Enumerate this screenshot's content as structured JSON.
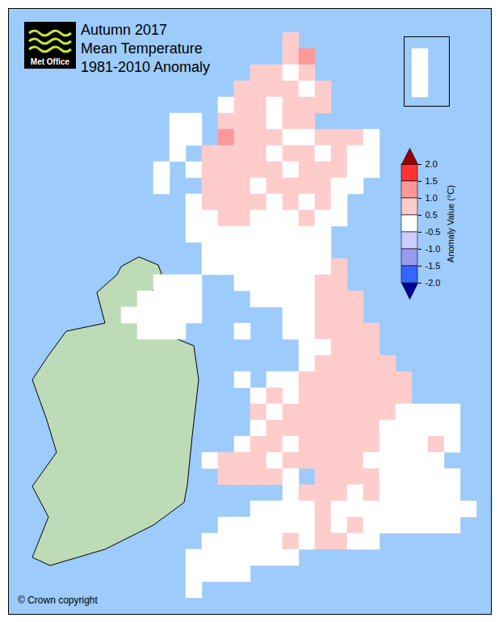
{
  "chart_data": {
    "type": "map",
    "title": "Autumn 2017",
    "subtitle": [
      "Mean Temperature",
      "1981-2010 Anomaly"
    ],
    "annotations": [
      "Met Office"
    ],
    "caption": "© Crown copyright",
    "cells": [
      [
        null,
        null,
        null,
        null,
        null,
        null,
        null,
        null,
        null,
        null,
        null,
        null,
        null,
        null,
        null,
        null,
        0.7,
        null,
        null,
        null,
        null,
        null,
        null,
        null,
        null,
        null,
        null,
        null
      ],
      [
        null,
        null,
        null,
        null,
        null,
        null,
        null,
        null,
        null,
        null,
        null,
        null,
        null,
        null,
        null,
        null,
        0.7,
        1.2,
        null,
        null,
        null,
        null,
        null,
        null,
        0.3,
        null,
        null,
        null
      ],
      [
        null,
        null,
        null,
        null,
        null,
        null,
        null,
        null,
        null,
        null,
        null,
        null,
        null,
        null,
        0.7,
        0.7,
        0.3,
        0.7,
        null,
        null,
        null,
        null,
        null,
        null,
        0.3,
        null,
        null,
        null
      ],
      [
        null,
        null,
        null,
        null,
        null,
        null,
        null,
        null,
        null,
        null,
        null,
        null,
        null,
        0.7,
        0.7,
        0.7,
        0.7,
        0.3,
        0.7,
        null,
        null,
        null,
        null,
        null,
        0.3,
        null,
        null,
        null
      ],
      [
        null,
        null,
        null,
        null,
        null,
        null,
        null,
        null,
        null,
        null,
        null,
        null,
        0.3,
        0.7,
        0.7,
        0.3,
        0.7,
        0.7,
        0.7,
        null,
        null,
        null,
        null,
        null,
        null,
        null,
        null,
        null
      ],
      [
        null,
        null,
        null,
        null,
        null,
        null,
        null,
        null,
        null,
        0.3,
        0.3,
        null,
        0.7,
        0.7,
        0.7,
        0.3,
        0.7,
        0.7,
        null,
        null,
        null,
        null,
        null,
        null,
        null,
        null,
        null,
        null
      ],
      [
        null,
        null,
        null,
        null,
        null,
        null,
        null,
        null,
        null,
        0.3,
        0.3,
        null,
        1.2,
        0.7,
        0.7,
        0.7,
        0.3,
        0.3,
        0.7,
        0.7,
        0.7,
        0.3,
        null,
        null,
        null,
        null,
        null,
        null
      ],
      [
        null,
        null,
        null,
        null,
        null,
        null,
        null,
        null,
        null,
        0.3,
        null,
        0.7,
        0.7,
        0.7,
        0.7,
        0.3,
        0.7,
        0.7,
        0.3,
        0.7,
        0.3,
        0.3,
        null,
        null,
        null,
        null,
        null,
        null
      ],
      [
        null,
        null,
        null,
        null,
        null,
        null,
        null,
        null,
        0.3,
        null,
        0.3,
        0.7,
        0.7,
        0.7,
        0.7,
        0.7,
        0.3,
        0.7,
        0.7,
        0.7,
        0.3,
        0.3,
        null,
        null,
        null,
        null,
        null,
        null
      ],
      [
        null,
        null,
        null,
        null,
        null,
        null,
        null,
        null,
        0.3,
        null,
        null,
        0.7,
        0.7,
        0.7,
        0.3,
        0.7,
        0.7,
        0.7,
        0.7,
        0.3,
        0.3,
        null,
        null,
        null,
        null,
        null,
        null,
        null
      ],
      [
        null,
        null,
        null,
        null,
        null,
        null,
        null,
        null,
        null,
        null,
        0.3,
        0.7,
        0.7,
        0.7,
        0.7,
        0.3,
        0.7,
        0.3,
        0.7,
        0.3,
        null,
        null,
        null,
        null,
        null,
        null,
        null,
        null
      ],
      [
        null,
        null,
        null,
        null,
        null,
        null,
        null,
        null,
        null,
        null,
        0.3,
        0.3,
        0.7,
        0.7,
        0.3,
        0.3,
        0.3,
        0.7,
        0.3,
        0.3,
        null,
        null,
        null,
        null,
        null,
        null,
        null,
        null
      ],
      [
        null,
        null,
        null,
        null,
        null,
        null,
        null,
        null,
        null,
        null,
        0.3,
        0.3,
        0.3,
        0.3,
        0.3,
        0.3,
        0.3,
        0.3,
        0.3,
        null,
        null,
        null,
        null,
        null,
        null,
        null,
        null,
        null
      ],
      [
        null,
        null,
        null,
        null,
        null,
        null,
        null,
        null,
        null,
        null,
        null,
        0.3,
        0.3,
        0.3,
        0.3,
        0.3,
        0.3,
        0.3,
        0.3,
        null,
        null,
        null,
        null,
        null,
        null,
        null,
        null,
        null
      ],
      [
        null,
        null,
        null,
        null,
        null,
        null,
        null,
        null,
        null,
        null,
        null,
        0.3,
        0.3,
        0.3,
        0.3,
        0.3,
        0.3,
        0.3,
        0.3,
        0.7,
        null,
        null,
        null,
        null,
        null,
        null,
        null,
        null
      ],
      [
        null,
        null,
        null,
        null,
        null,
        null,
        null,
        null,
        0.3,
        0.3,
        0.3,
        null,
        null,
        0.3,
        0.3,
        0.3,
        0.3,
        0.3,
        0.7,
        0.7,
        null,
        null,
        null,
        null,
        null,
        null,
        null,
        null
      ],
      [
        null,
        null,
        null,
        null,
        null,
        null,
        null,
        0.3,
        0.3,
        0.3,
        0.3,
        null,
        null,
        null,
        0.3,
        0.3,
        0.3,
        0.3,
        0.7,
        0.7,
        0.7,
        null,
        null,
        null,
        null,
        null,
        null,
        null
      ],
      [
        null,
        null,
        null,
        null,
        null,
        null,
        0.3,
        0.3,
        0.3,
        0.3,
        0.3,
        null,
        null,
        null,
        null,
        null,
        0.3,
        0.3,
        0.7,
        0.7,
        0.7,
        null,
        null,
        null,
        null,
        null,
        null,
        null
      ],
      [
        null,
        null,
        null,
        null,
        null,
        null,
        null,
        0.3,
        0.3,
        0.3,
        null,
        null,
        null,
        0.3,
        null,
        null,
        0.3,
        0.3,
        0.7,
        0.7,
        0.7,
        0.7,
        null,
        null,
        null,
        null,
        null,
        null
      ],
      [
        null,
        null,
        null,
        null,
        null,
        null,
        null,
        null,
        null,
        null,
        null,
        null,
        null,
        null,
        null,
        null,
        null,
        0.3,
        0.3,
        0.7,
        0.7,
        0.7,
        null,
        null,
        null,
        null,
        null,
        null
      ],
      [
        null,
        null,
        null,
        null,
        null,
        null,
        null,
        null,
        null,
        null,
        null,
        null,
        null,
        null,
        null,
        null,
        null,
        0.3,
        0.7,
        0.7,
        0.7,
        0.7,
        0.7,
        null,
        null,
        null,
        null,
        null
      ],
      [
        null,
        null,
        null,
        null,
        null,
        null,
        null,
        null,
        null,
        null,
        null,
        null,
        null,
        0.3,
        null,
        0.3,
        0.3,
        0.7,
        0.7,
        0.7,
        0.7,
        0.7,
        0.7,
        0.7,
        null,
        null,
        null,
        null
      ],
      [
        null,
        null,
        null,
        null,
        null,
        null,
        null,
        null,
        null,
        null,
        null,
        null,
        null,
        null,
        0.3,
        0.7,
        0.3,
        0.7,
        0.7,
        0.7,
        0.7,
        0.7,
        0.7,
        0.7,
        null,
        null,
        null,
        null
      ],
      [
        null,
        null,
        null,
        null,
        null,
        null,
        null,
        null,
        null,
        null,
        null,
        null,
        null,
        null,
        0.7,
        0.3,
        0.7,
        0.7,
        0.7,
        0.7,
        0.7,
        0.7,
        0.7,
        0.3,
        0.3,
        0.3,
        0.3,
        null
      ],
      [
        null,
        null,
        null,
        null,
        null,
        null,
        null,
        null,
        null,
        null,
        null,
        null,
        null,
        null,
        0.3,
        0.7,
        0.7,
        0.7,
        0.7,
        0.7,
        0.7,
        0.7,
        0.3,
        0.3,
        0.3,
        0.3,
        0.3,
        null
      ],
      [
        null,
        null,
        null,
        null,
        null,
        null,
        null,
        null,
        null,
        null,
        null,
        null,
        null,
        0.3,
        0.7,
        0.7,
        0.3,
        0.7,
        0.7,
        0.7,
        0.7,
        0.7,
        0.3,
        0.3,
        0.3,
        0.7,
        0.3,
        null
      ],
      [
        null,
        null,
        null,
        null,
        null,
        null,
        null,
        null,
        null,
        null,
        null,
        0.3,
        0.7,
        0.7,
        0.7,
        0.3,
        0.7,
        0.7,
        0.7,
        0.7,
        0.7,
        0.3,
        0.3,
        0.3,
        0.3,
        0.3,
        null,
        null
      ],
      [
        null,
        null,
        null,
        null,
        null,
        null,
        null,
        null,
        null,
        null,
        null,
        null,
        0.7,
        0.7,
        0.7,
        0.7,
        0.3,
        null,
        0.7,
        0.7,
        0.7,
        0.7,
        0.3,
        0.3,
        0.3,
        0.3,
        0.3,
        null
      ],
      [
        null,
        null,
        null,
        null,
        null,
        null,
        null,
        null,
        null,
        null,
        null,
        null,
        null,
        null,
        null,
        null,
        0.3,
        0.7,
        0.7,
        0.7,
        0.3,
        0.7,
        0.3,
        0.3,
        0.3,
        0.3,
        0.3,
        null
      ],
      [
        null,
        null,
        null,
        null,
        null,
        null,
        null,
        null,
        null,
        null,
        null,
        null,
        null,
        null,
        0.3,
        0.3,
        0.3,
        0.3,
        0.7,
        0.3,
        0.3,
        0.3,
        0.3,
        0.3,
        0.3,
        0.3,
        0.3,
        0.3
      ],
      [
        null,
        null,
        null,
        null,
        null,
        null,
        null,
        null,
        null,
        null,
        null,
        null,
        0.3,
        0.3,
        0.3,
        0.3,
        0.3,
        0.3,
        0.7,
        0.3,
        0.7,
        0.3,
        0.3,
        0.3,
        0.3,
        0.3,
        0.3,
        null
      ],
      [
        null,
        null,
        null,
        null,
        null,
        null,
        null,
        null,
        null,
        null,
        null,
        0.3,
        0.3,
        0.3,
        0.3,
        0.3,
        0.7,
        0.3,
        0.7,
        0.7,
        0.3,
        0.3,
        null,
        null,
        null,
        null,
        null,
        null
      ],
      [
        null,
        null,
        null,
        null,
        null,
        null,
        null,
        null,
        null,
        null,
        0.3,
        0.3,
        0.3,
        0.3,
        0.3,
        0.3,
        0.3,
        null,
        null,
        null,
        null,
        null,
        null,
        null,
        null,
        null,
        null,
        null
      ],
      [
        null,
        null,
        null,
        null,
        null,
        null,
        null,
        null,
        null,
        null,
        0.3,
        0.3,
        0.3,
        0.3,
        null,
        null,
        null,
        null,
        null,
        null,
        null,
        null,
        null,
        null,
        null,
        null,
        null,
        null
      ],
      [
        null,
        null,
        null,
        null,
        null,
        null,
        null,
        null,
        null,
        null,
        0.3,
        null,
        null,
        null,
        null,
        null,
        null,
        null,
        null,
        null,
        null,
        null,
        null,
        null,
        null,
        null,
        null,
        null
      ]
    ],
    "colorbar": {
      "label": "Anomaly Value (°C)",
      "range": [
        -2,
        2
      ],
      "ticks": [
        {
          "value": 2,
          "label": "2.0"
        },
        {
          "value": 1.5,
          "label": "1.5"
        },
        {
          "value": 1,
          "label": "1.0"
        },
        {
          "value": 0.5,
          "label": "0.5"
        },
        {
          "value": -0.5,
          "label": "-0.5"
        },
        {
          "value": -1,
          "label": "-1.0"
        },
        {
          "value": -1.5,
          "label": "-1.5"
        },
        {
          "value": -2,
          "label": "-2.0"
        }
      ],
      "colors": [
        "#990000",
        "#ff3333",
        "#ff9999",
        "#ffcccc",
        "#ffffff",
        "#ccccff",
        "#9999ee",
        "#3366ff",
        "#000099"
      ]
    }
  }
}
